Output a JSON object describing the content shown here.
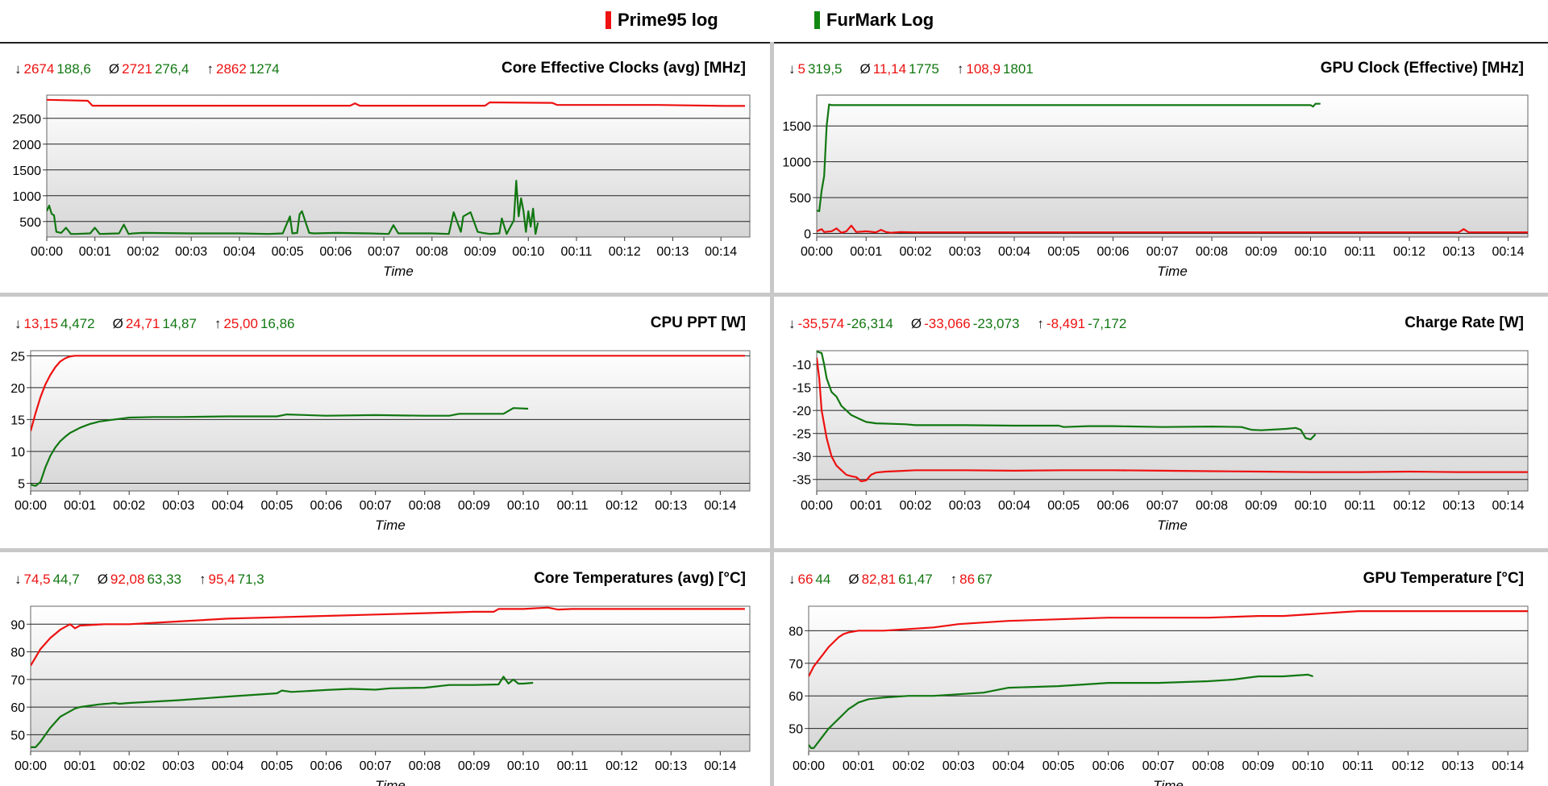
{
  "legend": [
    {
      "name": "Prime95 log",
      "color": "#ee1111"
    },
    {
      "name": "FurMark Log",
      "color": "#118811"
    }
  ],
  "colors": {
    "prime": "#ee1111",
    "furmark": "#117711"
  },
  "chart_data": [
    {
      "type": "line",
      "title": "Core Effective Clocks (avg) [MHz]",
      "xlabel": "Time",
      "ylabel": "",
      "stats": {
        "min": [
          "2674",
          "188,6"
        ],
        "avg": [
          "2721",
          "276,4"
        ],
        "max": [
          "2862",
          "1274"
        ]
      },
      "x_ticks": [
        "00:00",
        "00:01",
        "00:02",
        "00:03",
        "00:04",
        "00:05",
        "00:06",
        "00:07",
        "00:08",
        "00:09",
        "00:10",
        "00:11",
        "00:12",
        "00:13",
        "00:14"
      ],
      "xlim": [
        0,
        14.6
      ],
      "y_ticks": [
        500,
        1000,
        1500,
        2000,
        2500
      ],
      "ylim": [
        200,
        2950
      ],
      "grid": true,
      "series": [
        {
          "name": "Prime95 log",
          "x": [
            0,
            0.85,
            0.95,
            3,
            5.2,
            6.3,
            6.4,
            6.5,
            9.1,
            9.2,
            10.5,
            10.6,
            11.6,
            12.7,
            14.1,
            14.5
          ],
          "y": [
            2860,
            2840,
            2745,
            2745,
            2745,
            2745,
            2790,
            2745,
            2745,
            2810,
            2800,
            2760,
            2760,
            2760,
            2740,
            2740
          ]
        },
        {
          "name": "FurMark Log",
          "x": [
            0,
            0.05,
            0.1,
            0.15,
            0.2,
            0.3,
            0.4,
            0.5,
            0.6,
            0.9,
            1,
            1.1,
            1.5,
            1.6,
            1.7,
            1.8,
            2,
            3,
            4,
            4.6,
            4.9,
            5.05,
            5.1,
            5.2,
            5.25,
            5.3,
            5.45,
            5.55,
            6,
            6.7,
            7.1,
            7.2,
            7.3,
            8,
            8.35,
            8.45,
            8.55,
            8.6,
            8.65,
            8.8,
            8.95,
            9.05,
            9.2,
            9.4,
            9.45,
            9.55,
            9.6,
            9.7,
            9.75,
            9.8,
            9.85,
            9.9,
            9.95,
            10,
            10.05,
            10.1,
            10.15,
            10.2
          ],
          "y": [
            700,
            810,
            650,
            620,
            300,
            280,
            380,
            260,
            260,
            270,
            380,
            260,
            270,
            440,
            260,
            270,
            280,
            270,
            270,
            260,
            270,
            600,
            270,
            280,
            640,
            700,
            280,
            270,
            280,
            270,
            260,
            430,
            270,
            270,
            260,
            680,
            420,
            300,
            600,
            680,
            300,
            280,
            260,
            270,
            560,
            260,
            350,
            520,
            1290,
            600,
            950,
            700,
            300,
            700,
            400,
            750,
            260,
            480
          ]
        }
      ]
    },
    {
      "type": "line",
      "title": "GPU Clock (Effective) [MHz]",
      "xlabel": "Time",
      "ylabel": "",
      "stats": {
        "min": [
          "5",
          "319,5"
        ],
        "avg": [
          "11,14",
          "1775"
        ],
        "max": [
          "108,9",
          "1801"
        ]
      },
      "x_ticks": [
        "00:00",
        "00:01",
        "00:02",
        "00:03",
        "00:04",
        "00:05",
        "00:06",
        "00:07",
        "00:08",
        "00:09",
        "00:10",
        "00:11",
        "00:12",
        "00:13",
        "00:14"
      ],
      "xlim": [
        0,
        14.4
      ],
      "y_ticks": [
        0,
        500,
        1000,
        1500
      ],
      "ylim": [
        -50,
        1930
      ],
      "grid": true,
      "series": [
        {
          "name": "Prime95 log",
          "x": [
            0,
            0.1,
            0.15,
            0.3,
            0.4,
            0.5,
            0.6,
            0.7,
            0.8,
            1,
            1.2,
            1.3,
            1.4,
            1.5,
            1.7,
            2,
            3,
            5,
            7,
            8,
            9,
            10,
            11,
            12,
            13,
            13.1,
            13.2,
            14,
            14.4
          ],
          "y": [
            30,
            60,
            20,
            30,
            70,
            10,
            30,
            110,
            20,
            30,
            15,
            50,
            20,
            10,
            20,
            15,
            15,
            15,
            15,
            15,
            15,
            15,
            15,
            15,
            15,
            60,
            15,
            15,
            15
          ]
        },
        {
          "name": "FurMark Log",
          "x": [
            0,
            0.05,
            0.1,
            0.15,
            0.2,
            0.25,
            0.3,
            10,
            10.05,
            10.1,
            10.2
          ],
          "y": [
            320,
            310,
            600,
            800,
            1500,
            1800,
            1790,
            1790,
            1770,
            1810,
            1810
          ]
        }
      ]
    },
    {
      "type": "line",
      "title": "CPU PPT [W]",
      "xlabel": "Time",
      "ylabel": "",
      "stats": {
        "min": [
          "13,15",
          "4,472"
        ],
        "avg": [
          "24,71",
          "14,87"
        ],
        "max": [
          "25,00",
          "16,86"
        ]
      },
      "x_ticks": [
        "00:00",
        "00:01",
        "00:02",
        "00:03",
        "00:04",
        "00:05",
        "00:06",
        "00:07",
        "00:08",
        "00:09",
        "00:10",
        "00:11",
        "00:12",
        "00:13",
        "00:14"
      ],
      "xlim": [
        0,
        14.6
      ],
      "y_ticks": [
        5,
        10,
        15,
        20,
        25
      ],
      "ylim": [
        3.8,
        25.8
      ],
      "grid": true,
      "series": [
        {
          "name": "Prime95 log",
          "x": [
            0,
            0.1,
            0.2,
            0.3,
            0.4,
            0.5,
            0.6,
            0.7,
            0.8,
            0.9,
            14.5
          ],
          "y": [
            13.2,
            16,
            18.5,
            20.5,
            22,
            23.2,
            24.1,
            24.6,
            24.9,
            25,
            25
          ]
        },
        {
          "name": "FurMark Log",
          "x": [
            0,
            0.1,
            0.2,
            0.3,
            0.4,
            0.5,
            0.6,
            0.7,
            0.8,
            0.9,
            1,
            1.1,
            1.2,
            1.3,
            1.4,
            1.5,
            1.6,
            1.7,
            1.8,
            1.9,
            2,
            2.5,
            3,
            4,
            5,
            5.2,
            6,
            7,
            8,
            8.5,
            8.7,
            9,
            9.6,
            9.8,
            10.1
          ],
          "y": [
            4.8,
            4.6,
            5.2,
            7.5,
            9.3,
            10.6,
            11.6,
            12.3,
            12.9,
            13.3,
            13.7,
            14,
            14.3,
            14.5,
            14.7,
            14.8,
            14.9,
            15,
            15.1,
            15.2,
            15.3,
            15.4,
            15.4,
            15.5,
            15.5,
            15.8,
            15.6,
            15.7,
            15.6,
            15.6,
            15.9,
            15.9,
            15.9,
            16.8,
            16.7
          ]
        }
      ]
    },
    {
      "type": "line",
      "title": "Charge Rate [W]",
      "xlabel": "Time",
      "ylabel": "",
      "stats": {
        "min": [
          "-35,574",
          "-26,314"
        ],
        "avg": [
          "-33,066",
          "-23,073"
        ],
        "max": [
          "-8,491",
          "-7,172"
        ]
      },
      "x_ticks": [
        "00:00",
        "00:01",
        "00:02",
        "00:03",
        "00:04",
        "00:05",
        "00:06",
        "00:07",
        "00:08",
        "00:09",
        "00:10",
        "00:11",
        "00:12",
        "00:13",
        "00:14"
      ],
      "xlim": [
        0,
        14.4
      ],
      "y_ticks": [
        -35,
        -30,
        -25,
        -20,
        -15,
        -10
      ],
      "ylim": [
        -37.5,
        -7
      ],
      "grid": true,
      "series": [
        {
          "name": "Prime95 log",
          "x": [
            0,
            0.05,
            0.1,
            0.15,
            0.2,
            0.25,
            0.3,
            0.4,
            0.5,
            0.6,
            0.7,
            0.8,
            0.9,
            1,
            1.1,
            1.2,
            1.4,
            1.6,
            2,
            3,
            4,
            5,
            6,
            7,
            8,
            9,
            10,
            11,
            12,
            13,
            14,
            14.4
          ],
          "y": [
            -8.5,
            -13,
            -20,
            -23,
            -26,
            -28,
            -30,
            -32,
            -33,
            -34,
            -34.3,
            -34.5,
            -35.4,
            -35.2,
            -34,
            -33.5,
            -33.3,
            -33.2,
            -33,
            -33,
            -33.1,
            -33,
            -33,
            -33.1,
            -33.2,
            -33.3,
            -33.4,
            -33.4,
            -33.3,
            -33.4,
            -33.4,
            -33.4
          ]
        },
        {
          "name": "FurMark Log",
          "x": [
            0,
            0.1,
            0.15,
            0.2,
            0.3,
            0.4,
            0.5,
            0.6,
            0.7,
            0.8,
            0.9,
            1,
            1.2,
            1.5,
            1.8,
            2,
            3,
            4,
            4.9,
            5,
            5.5,
            6,
            7,
            8,
            8.6,
            8.8,
            9,
            9.5,
            9.7,
            9.8,
            9.9,
            10,
            10.1
          ],
          "y": [
            -7.2,
            -7.5,
            -10,
            -13,
            -16,
            -17,
            -19,
            -20,
            -21,
            -21.5,
            -22,
            -22.5,
            -22.8,
            -22.9,
            -23,
            -23.2,
            -23.2,
            -23.3,
            -23.3,
            -23.6,
            -23.4,
            -23.4,
            -23.6,
            -23.5,
            -23.6,
            -24.2,
            -24.3,
            -24,
            -23.8,
            -24.2,
            -26,
            -26.3,
            -25.2
          ]
        }
      ]
    },
    {
      "type": "line",
      "title": "Core Temperatures (avg) [°C]",
      "xlabel": "Time",
      "ylabel": "",
      "stats": {
        "min": [
          "74,5",
          "44,7"
        ],
        "avg": [
          "92,08",
          "63,33"
        ],
        "max": [
          "95,4",
          "71,3"
        ]
      },
      "x_ticks": [
        "00:00",
        "00:01",
        "00:02",
        "00:03",
        "00:04",
        "00:05",
        "00:06",
        "00:07",
        "00:08",
        "00:09",
        "00:10",
        "00:11",
        "00:12",
        "00:13",
        "00:14"
      ],
      "xlim": [
        0,
        14.6
      ],
      "y_ticks": [
        50,
        60,
        70,
        80,
        90
      ],
      "ylim": [
        44,
        96.5
      ],
      "grid": true,
      "series": [
        {
          "name": "Prime95 log",
          "x": [
            0,
            0.1,
            0.2,
            0.4,
            0.6,
            0.8,
            0.9,
            1,
            1.5,
            2,
            3,
            4,
            5,
            6,
            7,
            8,
            9,
            9.4,
            9.5,
            10,
            10.5,
            10.7,
            11,
            12,
            13,
            14,
            14.5
          ],
          "y": [
            75,
            78,
            81,
            85,
            88,
            90,
            88.5,
            89.5,
            90,
            90,
            91,
            92,
            92.5,
            93,
            93.5,
            94,
            94.5,
            94.5,
            95.5,
            95.5,
            96,
            95.3,
            95.5,
            95.5,
            95.5,
            95.5,
            95.5
          ]
        },
        {
          "name": "FurMark Log",
          "x": [
            0,
            0.1,
            0.2,
            0.3,
            0.4,
            0.5,
            0.6,
            0.7,
            0.8,
            0.9,
            1,
            1.2,
            1.4,
            1.6,
            1.7,
            1.8,
            2,
            3,
            4,
            5,
            5.1,
            5.3,
            6,
            6.5,
            7,
            7.3,
            8,
            8.5,
            9,
            9.5,
            9.6,
            9.7,
            9.8,
            9.9,
            10,
            10.2
          ],
          "y": [
            45.5,
            45.5,
            47.5,
            50,
            52.5,
            54.5,
            56.5,
            57.5,
            58.5,
            59.5,
            60,
            60.5,
            61,
            61.3,
            61.5,
            61.2,
            61.5,
            62.5,
            63.8,
            65,
            66,
            65.5,
            66.2,
            66.6,
            66.3,
            66.8,
            67,
            68,
            68,
            68.2,
            71,
            68.5,
            70,
            68.5,
            68.5,
            68.8
          ]
        }
      ]
    },
    {
      "type": "line",
      "title": "GPU Temperature [°C]",
      "xlabel": "Time",
      "ylabel": "",
      "stats": {
        "min": [
          "66",
          "44"
        ],
        "avg": [
          "82,81",
          "61,47"
        ],
        "max": [
          "86",
          "67"
        ]
      },
      "x_ticks": [
        "00:00",
        "00:01",
        "00:02",
        "00:03",
        "00:04",
        "00:05",
        "00:06",
        "00:07",
        "00:08",
        "00:09",
        "00:10",
        "00:11",
        "00:12",
        "00:13",
        "00:14"
      ],
      "xlim": [
        0,
        14.4
      ],
      "y_ticks": [
        50,
        60,
        70,
        80
      ],
      "ylim": [
        43,
        87.5
      ],
      "grid": true,
      "series": [
        {
          "name": "Prime95 log",
          "x": [
            0,
            0.1,
            0.2,
            0.3,
            0.4,
            0.5,
            0.6,
            0.7,
            0.8,
            1,
            1.5,
            2,
            2.5,
            3,
            4,
            5,
            6,
            7,
            8,
            9,
            9.5,
            10,
            11,
            12,
            13,
            14,
            14.4
          ],
          "y": [
            66,
            69,
            71,
            73,
            75,
            76.5,
            78,
            79,
            79.5,
            80,
            80,
            80.5,
            81,
            82,
            83,
            83.5,
            84,
            84,
            84,
            84.5,
            84.5,
            85,
            86,
            86,
            86,
            86,
            86
          ]
        },
        {
          "name": "FurMark Log",
          "x": [
            0,
            0.05,
            0.1,
            0.2,
            0.3,
            0.4,
            0.5,
            0.6,
            0.7,
            0.8,
            0.9,
            1,
            1.2,
            1.5,
            2,
            2.5,
            3,
            3.5,
            4,
            5,
            6,
            7,
            8,
            8.5,
            9,
            9.5,
            10,
            10.1
          ],
          "y": [
            45,
            44,
            44,
            46,
            48,
            50,
            51.5,
            53,
            54.5,
            56,
            57,
            58,
            59,
            59.5,
            60,
            60,
            60.5,
            61,
            62.5,
            63,
            64,
            64,
            64.5,
            65,
            66,
            66,
            66.5,
            66
          ]
        }
      ]
    }
  ]
}
